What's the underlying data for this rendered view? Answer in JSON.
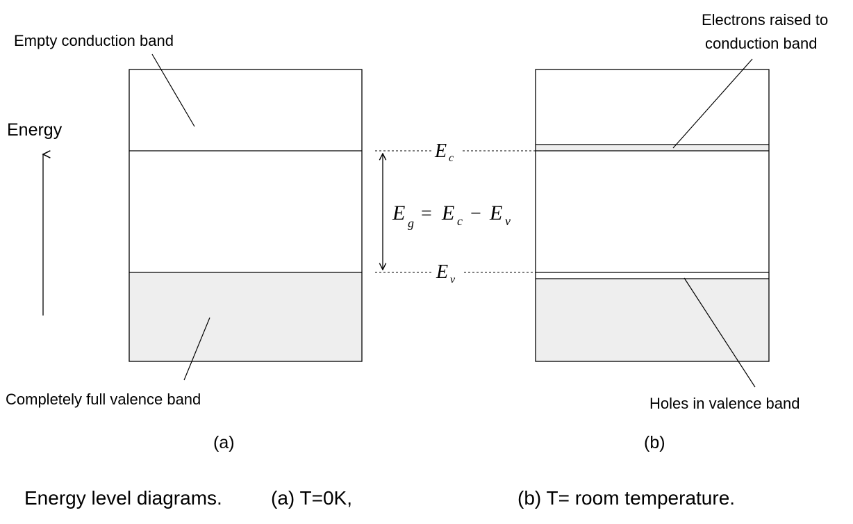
{
  "energy_axis_label": "Energy",
  "diagram_a": {
    "top_label": "Empty conduction band",
    "bottom_label": "Completely full valence band",
    "tag": "(a)"
  },
  "diagram_b": {
    "top_label_line1": "Electrons raised to",
    "top_label_line2": "conduction band",
    "bottom_label": "Holes in valence band",
    "tag": "(b)"
  },
  "levels": {
    "ec_symbol": "E",
    "ec_sub": "c",
    "ev_symbol": "E",
    "ev_sub": "v",
    "gap_symbol": "E",
    "gap_sub": "g",
    "gap_eq": "=",
    "gap_minus": "−"
  },
  "caption": {
    "part1": "Energy level diagrams.",
    "part2": "(a) T=0K,",
    "part3": "(b) T= room temperature."
  },
  "colors": {
    "filled_band": "#eeeeee",
    "stroke": "#000000"
  }
}
